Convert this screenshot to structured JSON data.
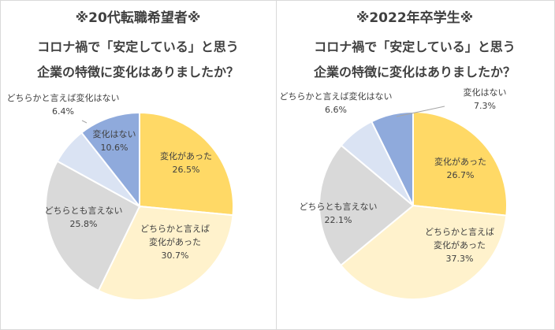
{
  "chart_data": [
    {
      "type": "pie",
      "title_lines": [
        "※20代転職希望者※",
        "コロナ禍で「安定している」と思う",
        "企業の特徴に変化はありましたか？"
      ],
      "slices": [
        {
          "label": [
            "変化があった"
          ],
          "value": 26.5,
          "display": "26.5%",
          "color": "#ffd966"
        },
        {
          "label": [
            "どちらかと言えば",
            "変化があった"
          ],
          "value": 30.7,
          "display": "30.7%",
          "color": "#fff2cc"
        },
        {
          "label": [
            "どちらとも言えない"
          ],
          "value": 25.8,
          "display": "25.8%",
          "color": "#d9d9d9"
        },
        {
          "label": [
            "どちらかと言えば変化はない"
          ],
          "value": 6.4,
          "display": "6.4%",
          "color": "#dae3f3"
        },
        {
          "label": [
            "変化はない"
          ],
          "value": 10.6,
          "display": "10.6%",
          "color": "#8faadc"
        }
      ]
    },
    {
      "type": "pie",
      "title_lines": [
        "※2022年卒学生※",
        "コロナ禍で「安定している」と思う",
        "企業の特徴に変化はありましたか？"
      ],
      "slices": [
        {
          "label": [
            "変化があった"
          ],
          "value": 26.7,
          "display": "26.7%",
          "color": "#ffd966"
        },
        {
          "label": [
            "どちらかと言えば",
            "変化があった"
          ],
          "value": 37.3,
          "display": "37.3%",
          "color": "#fff2cc"
        },
        {
          "label": [
            "どちらとも言えない"
          ],
          "value": 22.1,
          "display": "22.1%",
          "color": "#d9d9d9"
        },
        {
          "label": [
            "どちらかと言えば変化はない"
          ],
          "value": 6.6,
          "display": "6.6%",
          "color": "#dae3f3"
        },
        {
          "label": [
            "変化はない"
          ],
          "value": 7.3,
          "display": "7.3%",
          "color": "#8faadc"
        }
      ]
    }
  ]
}
